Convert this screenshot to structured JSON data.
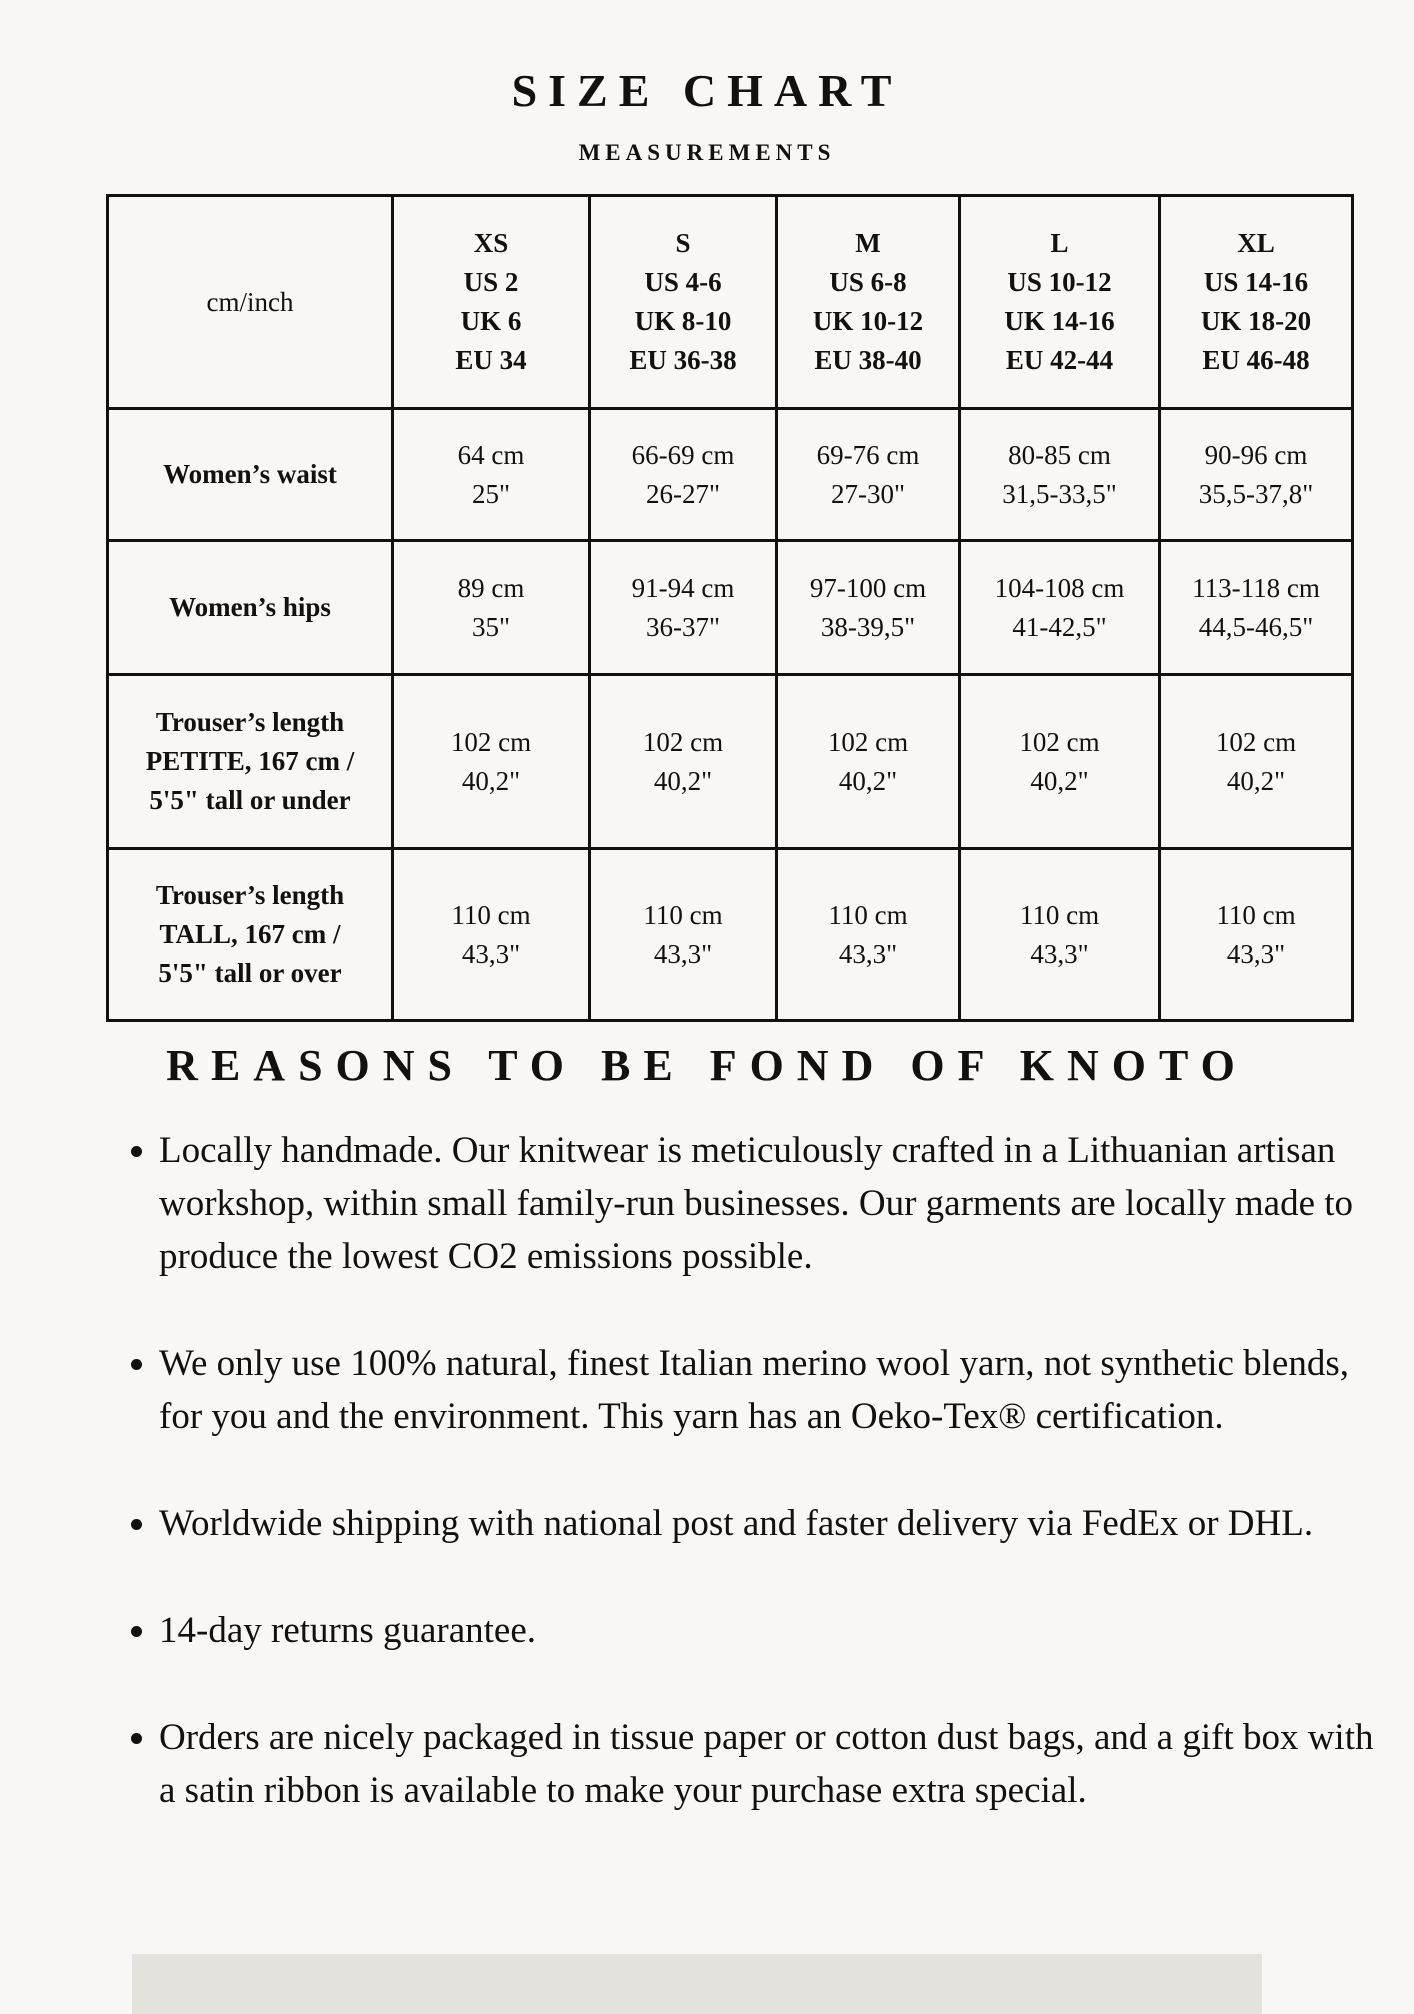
{
  "title": "SIZE CHART",
  "subtitle": "MEASUREMENTS",
  "table": {
    "corner": "cm/inch",
    "sizes": [
      {
        "name": "XS",
        "us": "US 2",
        "uk": "UK 6",
        "eu": "EU 34"
      },
      {
        "name": "S",
        "us": "US 4-6",
        "uk": "UK 8-10",
        "eu": "EU 36-38"
      },
      {
        "name": "M",
        "us": "US 6-8",
        "uk": "UK 10-12",
        "eu": "EU 38-40"
      },
      {
        "name": "L",
        "us": "US 10-12",
        "uk": "UK 14-16",
        "eu": "EU 42-44"
      },
      {
        "name": "XL",
        "us": "US 14-16",
        "uk": "UK 18-20",
        "eu": "EU 46-48"
      }
    ],
    "rows": [
      {
        "label": [
          "Women’s waist"
        ],
        "cells": [
          [
            "64 cm",
            "25\""
          ],
          [
            "66-69 cm",
            "26-27\""
          ],
          [
            "69-76 cm",
            "27-30\""
          ],
          [
            "80-85 cm",
            "31,5-33,5\""
          ],
          [
            "90-96 cm",
            "35,5-37,8\""
          ]
        ]
      },
      {
        "label": [
          "Women’s hips"
        ],
        "cells": [
          [
            "89 cm",
            "35\""
          ],
          [
            "91-94 cm",
            "36-37\""
          ],
          [
            "97-100 cm",
            "38-39,5\""
          ],
          [
            "104-108 cm",
            "41-42,5\""
          ],
          [
            "113-118 cm",
            "44,5-46,5\""
          ]
        ]
      },
      {
        "label": [
          "Trouser’s length",
          "PETITE, 167 cm /",
          "5'5\" tall or under"
        ],
        "cells": [
          [
            "102 cm",
            "40,2\""
          ],
          [
            "102 cm",
            "40,2\""
          ],
          [
            "102 cm",
            "40,2\""
          ],
          [
            "102 cm",
            "40,2\""
          ],
          [
            "102 cm",
            "40,2\""
          ]
        ]
      },
      {
        "label": [
          "Trouser’s length",
          "TALL,  167 cm /",
          "5'5\" tall or over"
        ],
        "cells": [
          [
            "110 cm",
            "43,3\""
          ],
          [
            "110 cm",
            "43,3\""
          ],
          [
            "110 cm",
            "43,3\""
          ],
          [
            "110 cm",
            "43,3\""
          ],
          [
            "110 cm",
            "43,3\""
          ]
        ]
      }
    ]
  },
  "reasons": {
    "heading": "REASONS TO BE FOND OF KNOTO",
    "items": [
      "Locally handmade. Our knitwear is meticulously crafted in a Lithuanian artisan workshop, within small family-run businesses. Our garments are locally made to produce the lowest CO2 emissions possible.",
      "We only use 100% natural, finest Italian merino wool yarn, not synthetic blends, for you and the environment. This yarn has an Oeko-Tex® certification.",
      "Worldwide shipping with national post and faster delivery via FedEx or DHL.",
      "14-day returns guarantee.",
      "Orders are nicely packaged in tissue paper or cotton dust bags, and a gift box with a satin ribbon is available to make your purchase extra special."
    ]
  }
}
